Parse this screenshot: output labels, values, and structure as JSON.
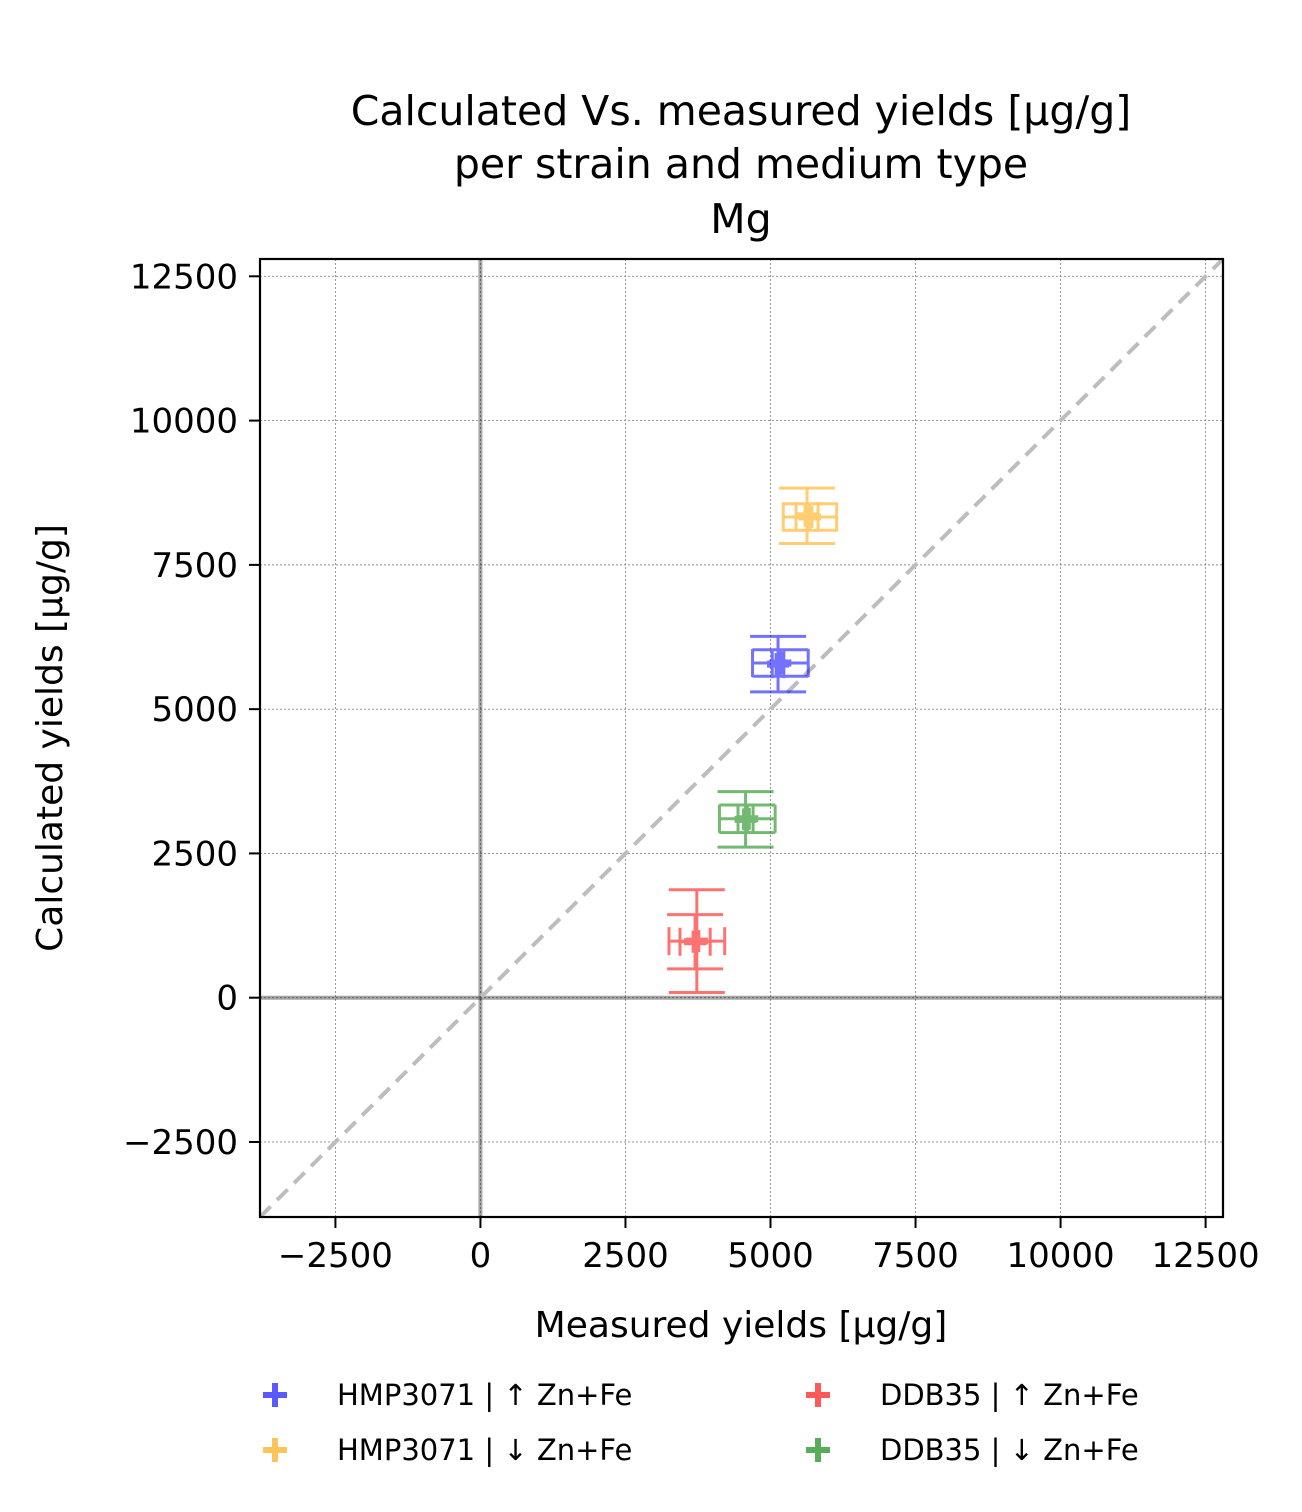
{
  "chart_data": {
    "type": "scatter",
    "title_lines": [
      "Calculated Vs. measured yields [µg/g]",
      "per strain and medium type",
      "Mg"
    ],
    "xlabel": "Measured yields [µg/g]",
    "ylabel": "Calculated yields [µg/g]",
    "xlim": [
      -3800,
      12800
    ],
    "ylim": [
      -3800,
      12800
    ],
    "xticks": [
      -2500,
      0,
      2500,
      5000,
      7500,
      10000,
      12500
    ],
    "yticks": [
      -2500,
      0,
      2500,
      5000,
      7500,
      10000,
      12500
    ],
    "xtick_labels": [
      "−2500",
      "0",
      "2500",
      "5000",
      "7500",
      "10000",
      "12500"
    ],
    "ytick_labels": [
      "−2500",
      "0",
      "2500",
      "5000",
      "7500",
      "10000",
      "12500"
    ],
    "grid": true,
    "identity_line": true,
    "legend_position": "bottom",
    "series": [
      {
        "name": "HMP3071  |  ↑ Zn+Fe",
        "color": "#0000ff",
        "points": [
          {
            "x": 5170,
            "y": 5800,
            "xerr": 480,
            "yerr": 230
          },
          {
            "x": 5130,
            "y": 5780,
            "xerr": 100,
            "yerr": 480
          }
        ]
      },
      {
        "name": "HMP3071  |  ↓ Zn+Fe",
        "color": "#ffa500",
        "points": [
          {
            "x": 5680,
            "y": 8330,
            "xerr": 460,
            "yerr": 230
          },
          {
            "x": 5630,
            "y": 8350,
            "xerr": 190,
            "yerr": 480
          }
        ]
      },
      {
        "name": "DDB35  |  ↑ Zn+Fe",
        "color": "#ff0000",
        "points": [
          {
            "x": 3730,
            "y": 980,
            "xerr": 480,
            "yerr": 890
          },
          {
            "x": 3700,
            "y": 970,
            "xerr": 260,
            "yerr": 470
          }
        ]
      },
      {
        "name": "DDB35  |  ↓ Zn+Fe",
        "color": "#008000",
        "points": [
          {
            "x": 4600,
            "y": 3100,
            "xerr": 480,
            "yerr": 240
          },
          {
            "x": 4570,
            "y": 3090,
            "xerr": 130,
            "yerr": 480
          }
        ]
      }
    ]
  }
}
